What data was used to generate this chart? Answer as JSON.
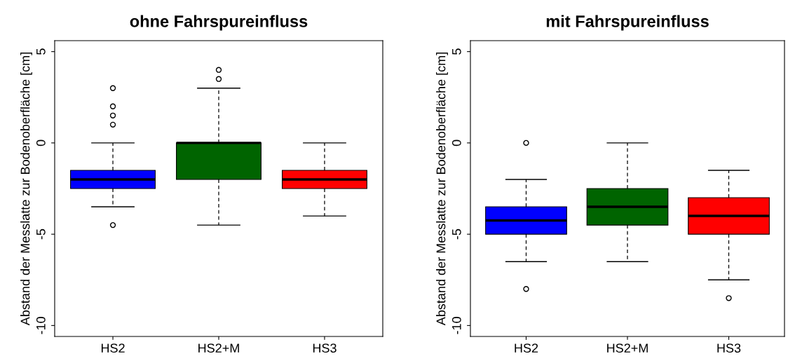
{
  "chart_data": [
    {
      "type": "box",
      "title": "ohne Fahrspureinfluss",
      "ylabel": "Abstand der Messlatte zur Bodenoberfläche [cm]",
      "categories": [
        "HS2",
        "HS2+M",
        "HS3"
      ],
      "colors": [
        "#0000ff",
        "#006400",
        "#ff0000"
      ],
      "ylim": [
        -10.6,
        5.6
      ],
      "yticks": [
        -10,
        -5,
        0,
        5
      ],
      "grid": false,
      "boxes": [
        {
          "low": -3.5,
          "q1": -2.5,
          "median": -2,
          "q3": -1.5,
          "high": 0,
          "outliers": [
            1,
            1.5,
            2,
            3,
            -4.5
          ]
        },
        {
          "low": -4.5,
          "q1": -2,
          "median": 0,
          "q3": 0,
          "high": 3,
          "outliers": [
            3.5,
            4
          ]
        },
        {
          "low": -4,
          "q1": -2.5,
          "median": -2,
          "q3": -1.5,
          "high": 0
        }
      ]
    },
    {
      "type": "box",
      "title": "mit Fahrspureinfluss",
      "ylabel": "Abstand der Messlatte zur Bodenoberfläche [cm]",
      "categories": [
        "HS2",
        "HS2+M",
        "HS3"
      ],
      "colors": [
        "#0000ff",
        "#006400",
        "#ff0000"
      ],
      "ylim": [
        -10.6,
        5.6
      ],
      "yticks": [
        -10,
        -5,
        0,
        5
      ],
      "grid": false,
      "boxes": [
        {
          "low": -6.5,
          "q1": -5,
          "median": -4.25,
          "q3": -3.5,
          "high": -2,
          "outliers": [
            0,
            -8
          ]
        },
        {
          "low": -6.5,
          "q1": -4.5,
          "median": -3.5,
          "q3": -2.5,
          "high": 0
        },
        {
          "low": -7.5,
          "q1": -5,
          "median": -4,
          "q3": -3,
          "high": -1.5,
          "outliers": [
            -8.5
          ]
        }
      ]
    }
  ]
}
